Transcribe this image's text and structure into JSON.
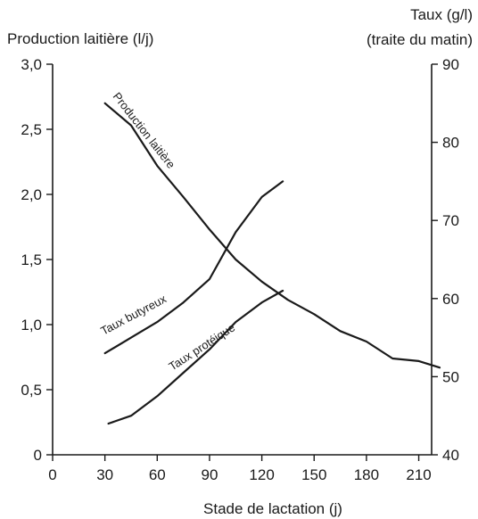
{
  "chart_data": {
    "type": "line",
    "title": "",
    "xlabel": "Stade de lactation (j)",
    "ylabel_left": "Production laitière (l/j)",
    "ylabel_right_line1": "Taux (g/l)",
    "ylabel_right_line2": "(traite du matin)",
    "xlim": [
      0,
      225
    ],
    "ylim_left": [
      0,
      3.0
    ],
    "ylim_right": [
      40,
      90
    ],
    "x_ticks": [
      0,
      30,
      60,
      90,
      120,
      150,
      180,
      210
    ],
    "x_tick_labels": [
      "0",
      "30",
      "60",
      "90",
      "120",
      "150",
      "180",
      "210"
    ],
    "y_left_ticks": [
      0,
      0.5,
      1.0,
      1.5,
      2.0,
      2.5,
      3.0
    ],
    "y_left_tick_labels": [
      "0",
      "0,5",
      "1,0",
      "1,5",
      "2,0",
      "2,5",
      "3,0"
    ],
    "y_right_ticks": [
      40,
      50,
      60,
      70,
      80,
      90
    ],
    "y_right_tick_labels": [
      "40",
      "50",
      "60",
      "70",
      "80",
      "90"
    ],
    "grid": false,
    "legend": "none",
    "series": [
      {
        "name": "Production laitière",
        "axis": "left",
        "x": [
          30,
          45,
          60,
          75,
          90,
          105,
          120,
          135,
          150,
          165,
          180,
          195,
          210,
          222
        ],
        "y": [
          2.7,
          2.53,
          2.22,
          1.98,
          1.73,
          1.5,
          1.33,
          1.19,
          1.08,
          0.95,
          0.87,
          0.74,
          0.72,
          0.67
        ]
      },
      {
        "name": "Taux butyreux",
        "axis": "right",
        "x": [
          30,
          45,
          60,
          75,
          90,
          105,
          120,
          132
        ],
        "y": [
          53.0,
          55.0,
          57.0,
          59.5,
          62.5,
          68.5,
          73.0,
          75.0
        ]
      },
      {
        "name": "Taux protéique",
        "axis": "right",
        "x": [
          32,
          45,
          60,
          75,
          90,
          105,
          120,
          132
        ],
        "y": [
          44.0,
          45.0,
          47.5,
          50.5,
          53.5,
          57.0,
          59.5,
          61.0
        ]
      }
    ]
  }
}
